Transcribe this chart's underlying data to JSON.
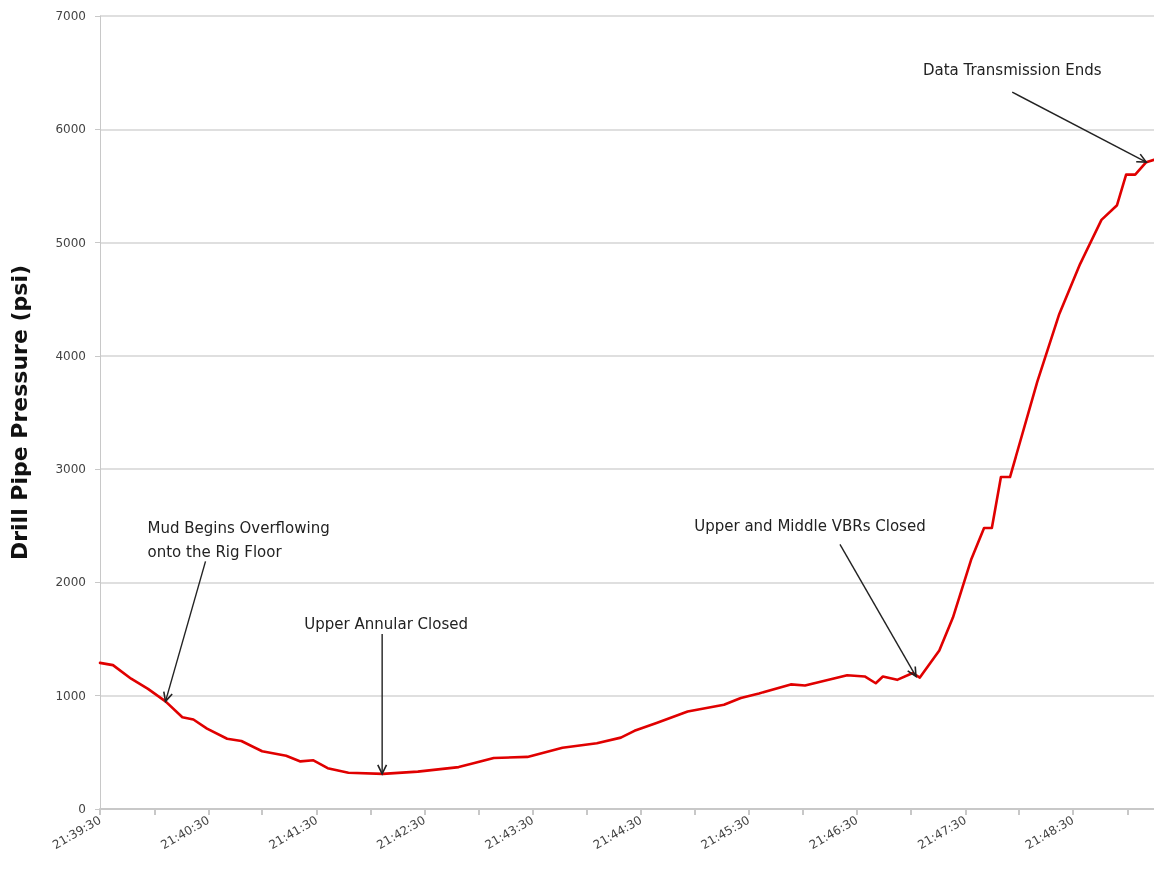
{
  "chart_data": {
    "type": "line",
    "ylabel": "Drill Pipe Pressure (psi)",
    "x": [
      21.6583,
      21.6603,
      21.6631,
      21.6657,
      21.6684,
      21.671,
      21.6727,
      21.6748,
      21.6779,
      21.6801,
      21.6833,
      21.687,
      21.6892,
      21.6912,
      21.6934,
      21.6966,
      21.7019,
      21.7073,
      21.7136,
      21.719,
      21.7242,
      21.7296,
      21.7349,
      21.7386,
      21.7407,
      21.7441,
      21.7489,
      21.7545,
      21.7571,
      21.7599,
      21.7648,
      21.767,
      21.7735,
      21.7762,
      21.7779,
      21.779,
      21.7812,
      21.7836,
      21.7847,
      21.7877,
      21.7898,
      21.7926,
      21.7946,
      21.7958,
      21.7972,
      21.7986,
      21.8028,
      21.8062,
      21.8094,
      21.8127,
      21.8151,
      21.8165,
      21.8179,
      21.8196,
      21.8208
    ],
    "series": [
      {
        "color": "#e00000",
        "values": [
          1290,
          1270,
          1150,
          1060,
          950,
          810,
          790,
          710,
          620,
          600,
          510,
          470,
          420,
          430,
          360,
          320,
          310,
          330,
          370,
          450,
          460,
          540,
          580,
          630,
          690,
          760,
          860,
          920,
          980,
          1020,
          1100,
          1090,
          1180,
          1170,
          1110,
          1170,
          1140,
          1200,
          1160,
          1400,
          1690,
          2200,
          2480,
          2480,
          2930,
          2930,
          3770,
          4370,
          4810,
          5200,
          5330,
          5600,
          5600,
          5710,
          5730
        ]
      }
    ],
    "xlim": [
      21.6583,
      21.8208
    ],
    "xticks": [
      {
        "value": 21.6583,
        "label": "21:39:30"
      },
      {
        "value": 21.6667,
        "label": null
      },
      {
        "value": 21.675,
        "label": "21:40:30"
      },
      {
        "value": 21.6833,
        "label": null
      },
      {
        "value": 21.6917,
        "label": "21:41:30"
      },
      {
        "value": 21.7,
        "label": null
      },
      {
        "value": 21.7083,
        "label": "21:42:30"
      },
      {
        "value": 21.7167,
        "label": null
      },
      {
        "value": 21.725,
        "label": "21:43:30"
      },
      {
        "value": 21.7333,
        "label": null
      },
      {
        "value": 21.7417,
        "label": "21:44:30"
      },
      {
        "value": 21.75,
        "label": null
      },
      {
        "value": 21.7583,
        "label": "21:45:30"
      },
      {
        "value": 21.7667,
        "label": null
      },
      {
        "value": 21.775,
        "label": "21:46:30"
      },
      {
        "value": 21.7833,
        "label": null
      },
      {
        "value": 21.7917,
        "label": "21:47:30"
      },
      {
        "value": 21.8,
        "label": null
      },
      {
        "value": 21.8083,
        "label": "21:48:30"
      },
      {
        "value": 21.8167,
        "label": null
      }
    ],
    "ylim": [
      0,
      7000
    ],
    "yticks": [
      0,
      1000,
      2000,
      3000,
      4000,
      5000,
      6000,
      7000
    ],
    "grid": "y",
    "line_style": "solid",
    "annotations": [
      {
        "text": "Mud Begins Overflowing onto the Rig Floor",
        "x": 21.6684,
        "y": 950
      },
      {
        "text": "Upper Annular Closed",
        "x": 21.7018,
        "y": 310
      },
      {
        "text": "Upper and Middle VBRs Closed",
        "x": 21.7841,
        "y": 1170
      },
      {
        "text": "Data Transmission Ends",
        "x": 21.8196,
        "y": 5710
      }
    ]
  }
}
